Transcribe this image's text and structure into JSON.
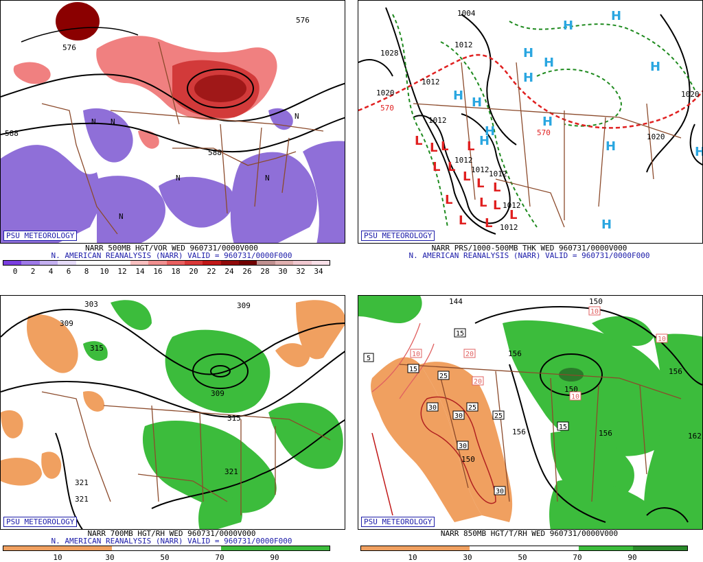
{
  "branding": "PSU METEOROLOGY",
  "colors": {
    "vort_negative": "#8f6fd8",
    "vort_positive": "#e05060",
    "vort_max": "#8b0000",
    "rh_dry": "#f0a060",
    "rh_moist": "#3cbc3c",
    "high_marker": "#2aa6e0",
    "low_marker": "#e02020",
    "boundary": "#8b4a2b",
    "caption_blue": "#1a1aa8"
  },
  "panels": [
    {
      "id": "500mb",
      "caption_line1": "NARR 500MB HGT/VOR WED 960731/0000V000",
      "caption_line2": "N. AMERICAN REANALYSIS (NARR) VALID = 960731/0000F000",
      "colorbar_ticks": [
        "0",
        "2",
        "4",
        "6",
        "8",
        "10",
        "12",
        "14",
        "16",
        "18",
        "20",
        "22",
        "24",
        "26",
        "28",
        "30",
        "32",
        "34"
      ],
      "contour_labels": [
        "576",
        "576",
        "588",
        "588"
      ],
      "marker_n": "N"
    },
    {
      "id": "thickness",
      "caption_line1": "NARR PRS/1000-500MB THK WED 960731/0000V000",
      "caption_line2": "N. AMERICAN REANALYSIS (NARR) VALID = 960731/0000F000",
      "marker_high": "H",
      "marker_low": "L",
      "isobar_labels": [
        "1004",
        "1028",
        "1012",
        "1020",
        "1012",
        "1012",
        "1012",
        "1012",
        "1012",
        "1012",
        "1020",
        "1020",
        "1012"
      ],
      "thickness_labels": [
        "570",
        "570"
      ]
    },
    {
      "id": "700mb",
      "caption_line1": "NARR 700MB HGT/RH WED 960731/0000V000",
      "caption_line2": "N. AMERICAN REANALYSIS (NARR) VALID = 960731/0000F000",
      "colorbar_ticks": [
        "10",
        "30",
        "50",
        "70",
        "90"
      ],
      "contour_labels": [
        "303",
        "309",
        "315",
        "309",
        "309",
        "315",
        "321",
        "321",
        "321"
      ]
    },
    {
      "id": "850mb",
      "caption_line1": "NARR 850MB HGT/T/RH WED 960731/0000V000",
      "colorbar_ticks": [
        "10",
        "30",
        "50",
        "70",
        "90"
      ],
      "contour_labels": [
        "144",
        "150",
        "156",
        "150",
        "156",
        "156",
        "156",
        "150",
        "162"
      ],
      "temp_labels": [
        "5",
        "10",
        "15",
        "15",
        "20",
        "20",
        "25",
        "25",
        "25",
        "30",
        "30",
        "30",
        "30",
        "15",
        "10",
        "10",
        "10"
      ]
    }
  ]
}
